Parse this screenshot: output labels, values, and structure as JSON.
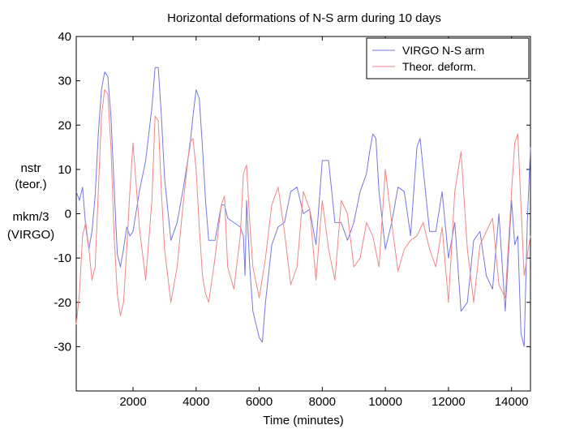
{
  "chart_data": {
    "type": "line",
    "title": "Horizontal deformations of N-S arm during 10 days",
    "xlabel": "Time (minutes)",
    "ylabel_lines": [
      "nstr",
      "(teor.)",
      "mkm/3",
      "(VIRGO)"
    ],
    "xlim": [
      200,
      14600
    ],
    "ylim": [
      -40,
      40
    ],
    "xticks": [
      2000,
      4000,
      6000,
      8000,
      10000,
      12000,
      14000
    ],
    "yticks": [
      -30,
      -20,
      -10,
      0,
      10,
      20,
      30,
      40
    ],
    "legend_position": "top-right",
    "colors": {
      "virgo": "#7777dd",
      "theor": "#ee8888"
    },
    "series": [
      {
        "name": "VIRGO N-S arm",
        "color": "#7777dd",
        "x": [
          200,
          300,
          400,
          500,
          600,
          700,
          800,
          900,
          1000,
          1100,
          1200,
          1300,
          1400,
          1500,
          1600,
          1700,
          1800,
          1900,
          2000,
          2200,
          2400,
          2600,
          2700,
          2800,
          2900,
          3000,
          3200,
          3400,
          3600,
          3800,
          3900,
          4000,
          4100,
          4200,
          4300,
          4400,
          4600,
          4800,
          4900,
          5000,
          5200,
          5400,
          5500,
          5550,
          5600,
          5700,
          5800,
          6000,
          6100,
          6200,
          6400,
          6600,
          6800,
          7000,
          7200,
          7400,
          7600,
          7800,
          8000,
          8200,
          8400,
          8600,
          8800,
          9000,
          9200,
          9400,
          9500,
          9600,
          9700,
          9800,
          10000,
          10200,
          10400,
          10600,
          10800,
          11000,
          11100,
          11200,
          11400,
          11600,
          11800,
          12000,
          12200,
          12400,
          12600,
          12800,
          13000,
          13200,
          13400,
          13600,
          13800,
          14000,
          14100,
          14200,
          14300,
          14400,
          14500,
          14600
        ],
        "y": [
          5,
          3,
          6,
          -3,
          -8,
          -4,
          4,
          18,
          28,
          32,
          31,
          22,
          6,
          -9,
          -12,
          -8,
          -3,
          -5,
          -4,
          5,
          12,
          24,
          33,
          33,
          22,
          8,
          -6,
          -2,
          6,
          15,
          22,
          28,
          26,
          15,
          3,
          -6,
          -6,
          2,
          2,
          -1,
          -2,
          -3,
          -5,
          -14,
          3,
          -12,
          -22,
          -28,
          -29,
          -20,
          -7,
          -3,
          -2,
          5,
          6,
          0,
          1,
          -7,
          12,
          12,
          -2,
          -2,
          -6,
          -2,
          5,
          9,
          14,
          18,
          17,
          5,
          -8,
          -2,
          6,
          5,
          -5,
          15,
          17,
          10,
          -4,
          -4,
          5,
          -10,
          -2,
          -22,
          -20,
          -6,
          -4,
          -14,
          -17,
          0,
          -22,
          3,
          -7,
          -5,
          -27,
          -30,
          -2,
          15
        ]
      },
      {
        "name": "Theor. deform.",
        "color": "#ee8888",
        "x": [
          200,
          300,
          400,
          500,
          600,
          700,
          800,
          900,
          1000,
          1100,
          1200,
          1300,
          1400,
          1500,
          1600,
          1700,
          1800,
          1900,
          2000,
          2200,
          2400,
          2600,
          2700,
          2800,
          2900,
          3000,
          3200,
          3400,
          3600,
          3800,
          3900,
          4000,
          4100,
          4200,
          4300,
          4400,
          4600,
          4800,
          4900,
          5000,
          5200,
          5400,
          5500,
          5600,
          5700,
          5800,
          6000,
          6200,
          6400,
          6600,
          6800,
          7000,
          7200,
          7400,
          7600,
          7800,
          8000,
          8200,
          8400,
          8600,
          8800,
          9000,
          9200,
          9400,
          9600,
          9800,
          10000,
          10200,
          10400,
          10600,
          10800,
          11000,
          11200,
          11400,
          11600,
          11800,
          12000,
          12200,
          12400,
          12600,
          12800,
          13000,
          13200,
          13400,
          13600,
          13800,
          14000,
          14100,
          14200,
          14400,
          14600
        ],
        "y": [
          -25,
          -18,
          -5,
          -2,
          -8,
          -15,
          -12,
          5,
          22,
          28,
          27,
          15,
          -5,
          -18,
          -23,
          -20,
          -8,
          5,
          16,
          -3,
          -15,
          3,
          22,
          21,
          5,
          -8,
          -20,
          -12,
          3,
          16,
          17,
          10,
          -3,
          -14,
          -18,
          -20,
          -10,
          2,
          4,
          -12,
          -17,
          -5,
          9,
          11,
          -2,
          -12,
          -19,
          -10,
          2,
          6,
          -4,
          -16,
          -12,
          5,
          1,
          -15,
          3,
          -8,
          -15,
          3,
          0,
          -12,
          -10,
          -2,
          -5,
          -12,
          10,
          -2,
          -13,
          -8,
          -6,
          -5,
          -2,
          -8,
          -12,
          -3,
          -20,
          5,
          14,
          -8,
          -20,
          -7,
          -4,
          -1,
          -16,
          -19,
          5,
          16,
          18,
          -14,
          -5
        ]
      }
    ]
  }
}
